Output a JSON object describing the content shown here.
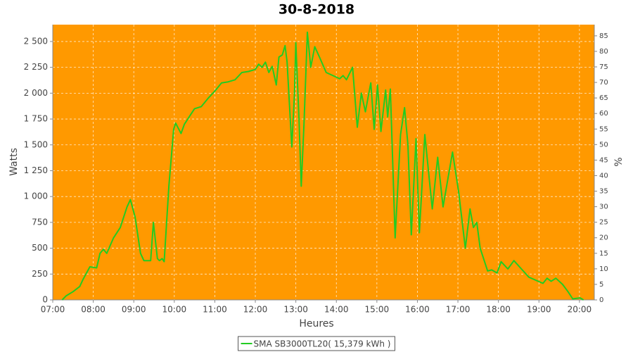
{
  "chart_data": {
    "type": "line",
    "title": "30-8-2018",
    "x_label": "Heures",
    "y_label": "Watts",
    "y2_label": "%",
    "xlim": [
      "07:00",
      "20:22"
    ],
    "xticks": [
      "07:00",
      "08:00",
      "09:00",
      "10:00",
      "11:00",
      "12:00",
      "13:00",
      "14:00",
      "15:00",
      "16:00",
      "17:00",
      "18:00",
      "19:00",
      "20:00"
    ],
    "ylim": [
      0,
      2663
    ],
    "yticks": [
      0,
      250,
      500,
      750,
      {
        "value": 1000,
        "label": "1 000"
      },
      {
        "value": 1250,
        "label": "1 250"
      },
      {
        "value": 1500,
        "label": "1 500"
      },
      {
        "value": 1750,
        "label": "1 750"
      },
      {
        "value": 2000,
        "label": "2 000"
      },
      {
        "value": 2250,
        "label": "2 250"
      },
      {
        "value": 2500,
        "label": "2 500"
      }
    ],
    "y2lim": [
      0,
      88.6
    ],
    "y2ticks": [
      0,
      5,
      10,
      15,
      20,
      25,
      30,
      35,
      40,
      45,
      50,
      55,
      60,
      65,
      70,
      75,
      80,
      85
    ],
    "grid": true,
    "plot_background": "#ff9900",
    "legend": "bottom",
    "x": [
      "07:14",
      "07:20",
      "07:30",
      "07:40",
      "07:45",
      "07:55",
      "08:05",
      "08:10",
      "08:15",
      "08:20",
      "08:30",
      "08:40",
      "08:50",
      "08:55",
      "09:02",
      "09:10",
      "09:15",
      "09:25",
      "09:29",
      "09:35",
      "09:38",
      "09:42",
      "09:45",
      "09:52",
      "09:59",
      "10:02",
      "10:10",
      "10:15",
      "10:25",
      "10:30",
      "10:40",
      "10:50",
      "11:00",
      "11:10",
      "11:20",
      "11:30",
      "11:40",
      "11:50",
      "12:00",
      "12:05",
      "12:10",
      "12:15",
      "12:20",
      "12:25",
      "12:31",
      "12:35",
      "12:40",
      "12:44",
      "12:47",
      "12:54",
      "12:58",
      "13:00",
      "13:05",
      "13:08",
      "13:12",
      "13:17",
      "13:22",
      "13:28",
      "13:35",
      "13:45",
      "13:55",
      "14:05",
      "14:10",
      "14:15",
      "14:24",
      "14:31",
      "14:37",
      "14:43",
      "14:51",
      "14:56",
      "15:01",
      "15:06",
      "15:13",
      "15:16",
      "15:20",
      "15:27",
      "15:35",
      "15:41",
      "15:46",
      "15:51",
      "15:58",
      "16:03",
      "16:11",
      "16:22",
      "16:30",
      "16:38",
      "16:52",
      "17:01",
      "17:11",
      "17:18",
      "17:23",
      "17:28",
      "17:33",
      "17:44",
      "17:50",
      "17:58",
      "18:04",
      "18:14",
      "18:23",
      "18:34",
      "18:45",
      "18:59",
      "19:06",
      "19:12",
      "19:18",
      "19:25",
      "19:35",
      "19:43",
      "19:50",
      "20:01",
      "20:06"
    ],
    "series": [
      {
        "name": "SMA SB3000TL20( 15,379 kWh )",
        "color": "#22cc22",
        "values": [
          0,
          40,
          80,
          130,
          200,
          320,
          310,
          450,
          490,
          450,
          600,
          700,
          900,
          970,
          800,
          450,
          380,
          380,
          750,
          400,
          380,
          400,
          370,
          1100,
          1650,
          1710,
          1610,
          1700,
          1800,
          1850,
          1870,
          1950,
          2020,
          2100,
          2110,
          2130,
          2200,
          2210,
          2230,
          2280,
          2250,
          2300,
          2200,
          2260,
          2080,
          2350,
          2370,
          2460,
          2300,
          1480,
          2000,
          2490,
          1700,
          1100,
          1700,
          2590,
          2250,
          2450,
          2350,
          2200,
          2170,
          2140,
          2170,
          2130,
          2250,
          1670,
          2000,
          1820,
          2100,
          1650,
          2080,
          1630,
          2030,
          1770,
          2040,
          600,
          1600,
          1860,
          1500,
          630,
          1560,
          650,
          1600,
          880,
          1380,
          900,
          1430,
          1050,
          500,
          880,
          700,
          750,
          500,
          280,
          290,
          260,
          370,
          300,
          380,
          300,
          220,
          180,
          160,
          210,
          180,
          210,
          150,
          80,
          10,
          20,
          0
        ]
      }
    ]
  }
}
